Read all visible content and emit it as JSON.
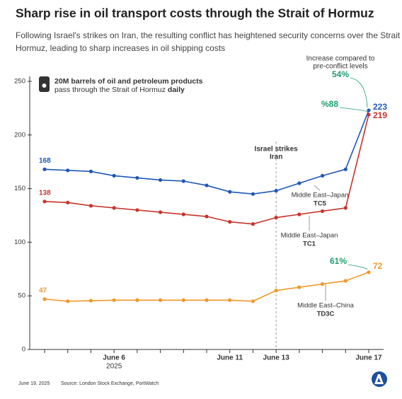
{
  "chart_data": {
    "type": "line",
    "title": "Sharp rise in oil transport costs through the Strait of Hormuz",
    "subtitle": [
      "Following Israel's strikes on Iran, the resulting conflict has heightened security concerns over the Strait of",
      "Hormuz, leading to sharp increases in oil shipping costs"
    ],
    "info_box": {
      "line1": "20M barrels of oil and petroleum products",
      "line2": "pass through the Strait of Hormuz",
      "line2_bold": "daily"
    },
    "categories": [
      null,
      null,
      null,
      "June 6",
      null,
      null,
      null,
      null,
      "June 11",
      null,
      "June 13",
      null,
      null,
      null,
      "June 17"
    ],
    "year_label": "2025",
    "ylim": [
      0,
      250
    ],
    "yticks": [
      0,
      50,
      100,
      150,
      200,
      250
    ],
    "series": [
      {
        "name": "Middle East–Japan",
        "code": "TC5",
        "color": "#1f57b8",
        "change": "54%",
        "values": [
          168,
          167,
          166,
          162,
          160,
          158,
          157,
          153,
          147,
          145,
          148,
          155,
          162,
          168,
          223
        ]
      },
      {
        "name": "Middle East–Japan",
        "code": "TC1",
        "color": "#c8332b",
        "change": "%88",
        "values": [
          138,
          137,
          134,
          132,
          130,
          128,
          126,
          124,
          119,
          117,
          123,
          126,
          129,
          132,
          219
        ]
      },
      {
        "name": "Middle East–China",
        "code": "TD3C",
        "color": "#f0982a",
        "change": "61%",
        "values": [
          47,
          45,
          45.5,
          46,
          46,
          46,
          46,
          46,
          46,
          45,
          55,
          58,
          61,
          64,
          72
        ]
      }
    ],
    "change_note": [
      "Increase compared to",
      "pre-conflict levels"
    ],
    "event": {
      "index": 10,
      "label": [
        "Israel strikes",
        "Iran"
      ]
    },
    "footer": {
      "date": "June 19, 2025",
      "source": "Source: London Stock Exchange, PortWatch"
    }
  }
}
